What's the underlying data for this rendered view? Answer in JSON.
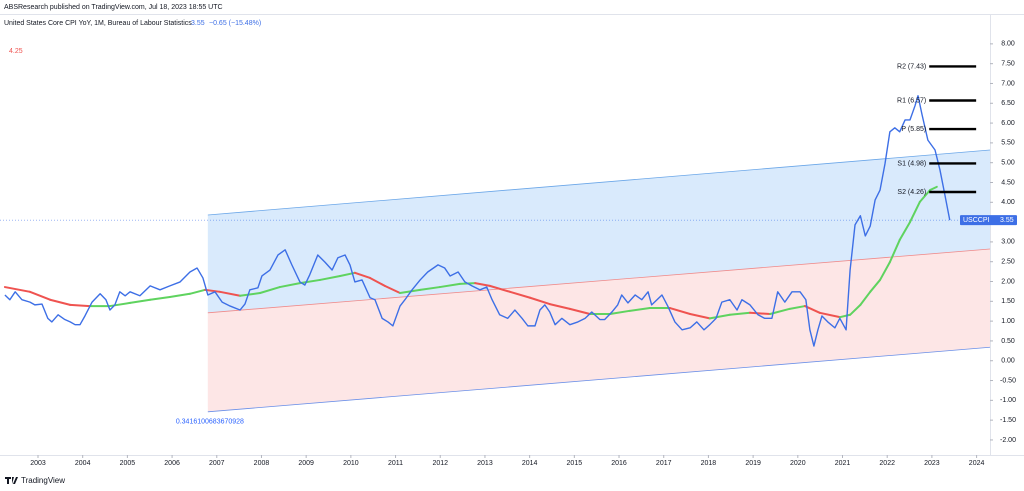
{
  "header": {
    "published": "ABSResearch published on TradingView.com, Jul 18, 2023 18:55 UTC",
    "brand": "TradingView"
  },
  "chart_data": {
    "type": "line",
    "legend": {
      "last": "3.55",
      "change": "−0.65 (−15.48%)"
    },
    "corner_annotation": "4.25",
    "xlim": [
      2002.15,
      2024.3
    ],
    "ylim": [
      -2.38,
      8.35
    ],
    "xticks": [
      2003,
      2004,
      2005,
      2006,
      2007,
      2008,
      2009,
      2010,
      2011,
      2012,
      2013,
      2014,
      2015,
      2016,
      2017,
      2018,
      2019,
      2020,
      2021,
      2022,
      2023,
      2024
    ],
    "yticks": [
      {
        "value": 8,
        "label": "8.00"
      },
      {
        "value": 7.5,
        "label": "7.50"
      },
      {
        "value": 7,
        "label": "7.00"
      },
      {
        "value": 6.5,
        "label": "6.50"
      },
      {
        "value": 6,
        "label": "6.00"
      },
      {
        "value": 5.5,
        "label": "5.50"
      },
      {
        "value": 5,
        "label": "5.00"
      },
      {
        "value": 4.5,
        "label": "4.50"
      },
      {
        "value": 4,
        "label": "4.00"
      },
      {
        "value": 3.5,
        "label": "3.50"
      },
      {
        "value": 3,
        "label": "3.00"
      },
      {
        "value": 2.5,
        "label": "2.50"
      },
      {
        "value": 2,
        "label": "2.00"
      },
      {
        "value": 1.5,
        "label": "1.50"
      },
      {
        "value": 1,
        "label": "1.00"
      },
      {
        "value": 0.5,
        "label": "0.50"
      },
      {
        "value": 0,
        "label": "0.00"
      },
      {
        "value": -0.5,
        "label": "-0.50"
      },
      {
        "value": -1,
        "label": "-1.00"
      },
      {
        "value": -1.5,
        "label": "-1.50"
      },
      {
        "value": -2,
        "label": "-2.00"
      }
    ],
    "grid": false,
    "series": [
      {
        "name": "United States Core CPI YoY, 1M, Bureau of Labour Statistics",
        "color": "#3d6fe6",
        "price_label": "USCCPI",
        "x": [
          2002.26,
          2002.37,
          2002.49,
          2002.64,
          2002.82,
          2002.93,
          2003.09,
          2003.22,
          2003.31,
          2003.45,
          2003.6,
          2003.72,
          2003.83,
          2003.94,
          2004.05,
          2004.21,
          2004.39,
          2004.52,
          2004.61,
          2004.72,
          2004.83,
          2004.95,
          2005.06,
          2005.28,
          2005.51,
          2005.73,
          2005.95,
          2006.18,
          2006.4,
          2006.56,
          2006.69,
          2006.8,
          2006.96,
          2007.12,
          2007.3,
          2007.52,
          2007.63,
          2007.74,
          2007.92,
          2008.01,
          2008.19,
          2008.37,
          2008.53,
          2008.68,
          2008.86,
          2008.97,
          2009.08,
          2009.26,
          2009.42,
          2009.58,
          2009.71,
          2009.87,
          2009.98,
          2010.09,
          2010.25,
          2010.43,
          2010.54,
          2010.7,
          2010.83,
          2010.94,
          2011.1,
          2011.21,
          2011.37,
          2011.55,
          2011.72,
          2011.95,
          2012.1,
          2012.22,
          2012.4,
          2012.55,
          2012.71,
          2012.89,
          2013.04,
          2013.16,
          2013.33,
          2013.51,
          2013.67,
          2013.83,
          2013.96,
          2014.12,
          2014.23,
          2014.34,
          2014.45,
          2014.57,
          2014.72,
          2014.9,
          2015.08,
          2015.24,
          2015.39,
          2015.57,
          2015.68,
          2015.84,
          2015.97,
          2016.06,
          2016.2,
          2016.36,
          2016.51,
          2016.65,
          2016.73,
          2016.85,
          2016.96,
          2017.09,
          2017.25,
          2017.41,
          2017.59,
          2017.74,
          2017.9,
          2018.03,
          2018.17,
          2018.3,
          2018.48,
          2018.64,
          2018.75,
          2018.93,
          2019.11,
          2019.26,
          2019.42,
          2019.55,
          2019.71,
          2019.87,
          2020.05,
          2020.18,
          2020.27,
          2020.36,
          2020.45,
          2020.54,
          2020.67,
          2020.83,
          2020.94,
          2021.08,
          2021.17,
          2021.28,
          2021.4,
          2021.51,
          2021.62,
          2021.73,
          2021.84,
          2021.95,
          2022.06,
          2022.17,
          2022.28,
          2022.4,
          2022.51,
          2022.62,
          2022.69,
          2022.78,
          2022.91,
          2023.07,
          2023.18,
          2023.29,
          2023.4
        ],
        "values": [
          1.66,
          1.54,
          1.74,
          1.54,
          1.48,
          1.41,
          1.43,
          1.07,
          0.98,
          1.16,
          1.04,
          0.98,
          0.91,
          0.91,
          1.13,
          1.48,
          1.69,
          1.54,
          1.28,
          1.41,
          1.74,
          1.64,
          1.74,
          1.64,
          1.89,
          1.79,
          1.89,
          1.99,
          2.24,
          2.34,
          2.09,
          1.66,
          1.74,
          1.48,
          1.38,
          1.28,
          1.43,
          1.79,
          1.84,
          2.14,
          2.29,
          2.67,
          2.8,
          2.42,
          1.99,
          1.91,
          2.17,
          2.67,
          2.49,
          2.29,
          2.6,
          2.67,
          2.42,
          1.99,
          2.04,
          1.59,
          1.54,
          1.07,
          0.98,
          0.88,
          1.38,
          1.54,
          1.79,
          2.04,
          2.24,
          2.42,
          2.34,
          2.14,
          2.24,
          1.99,
          1.89,
          1.79,
          1.86,
          1.54,
          1.16,
          1.07,
          1.28,
          1.07,
          0.88,
          0.88,
          1.28,
          1.41,
          1.23,
          0.91,
          1.07,
          0.91,
          0.98,
          1.07,
          1.23,
          1.04,
          1.04,
          1.23,
          1.41,
          1.66,
          1.46,
          1.66,
          1.54,
          1.74,
          1.41,
          1.54,
          1.66,
          1.38,
          0.98,
          0.78,
          0.83,
          0.98,
          0.78,
          0.91,
          1.07,
          1.48,
          1.54,
          1.28,
          1.54,
          1.41,
          1.16,
          1.07,
          1.07,
          1.74,
          1.48,
          1.74,
          1.74,
          1.54,
          0.78,
          0.37,
          0.78,
          1.13,
          0.98,
          0.83,
          1.07,
          0.78,
          2.29,
          3.43,
          3.66,
          3.15,
          3.4,
          4.06,
          4.31,
          4.97,
          5.78,
          5.88,
          5.78,
          6.08,
          6.08,
          6.43,
          6.69,
          6.21,
          5.57,
          5.32,
          4.82,
          4.19,
          3.55
        ]
      },
      {
        "rising_color": "#5fd35f",
        "falling_color": "#ef5350",
        "x": [
          2002.26,
          2002.82,
          2003.27,
          2003.72,
          2004.16,
          2004.61,
          2005.06,
          2005.51,
          2005.95,
          2006.4,
          2006.74,
          2007.07,
          2007.52,
          2007.97,
          2008.41,
          2008.86,
          2009.31,
          2009.76,
          2010.09,
          2010.43,
          2010.76,
          2011.1,
          2011.55,
          2011.99,
          2012.44,
          2012.78,
          2013.11,
          2013.56,
          2014.01,
          2014.45,
          2014.9,
          2015.35,
          2015.8,
          2016.24,
          2016.69,
          2017.14,
          2017.59,
          2018.03,
          2018.48,
          2018.93,
          2019.38,
          2019.82,
          2020.16,
          2020.49,
          2020.94,
          2021.17,
          2021.4,
          2021.62,
          2021.84,
          2022.06,
          2022.28,
          2022.51,
          2022.73,
          2022.96,
          2023.11
        ],
        "values": [
          1.86,
          1.74,
          1.54,
          1.41,
          1.38,
          1.38,
          1.46,
          1.54,
          1.61,
          1.69,
          1.79,
          1.74,
          1.64,
          1.71,
          1.86,
          1.96,
          2.04,
          2.14,
          2.22,
          2.09,
          1.89,
          1.71,
          1.79,
          1.86,
          1.94,
          1.96,
          1.89,
          1.74,
          1.59,
          1.43,
          1.31,
          1.18,
          1.18,
          1.26,
          1.33,
          1.33,
          1.18,
          1.07,
          1.16,
          1.21,
          1.18,
          1.31,
          1.38,
          1.21,
          1.1,
          1.16,
          1.41,
          1.74,
          2.04,
          2.49,
          3.05,
          3.5,
          4.01,
          4.31,
          4.39
        ]
      }
    ],
    "channel": {
      "x": [
        2006.8,
        2024.3
      ],
      "upper": [
        3.68,
        5.32
      ],
      "middle": [
        1.21,
        2.82
      ],
      "lower": [
        -1.29,
        0.34
      ],
      "upper_color": "#cfe5fb",
      "lower_color": "#fde0e0",
      "label": "0.3416100683670928"
    },
    "pivots": {
      "x": [
        2022.94,
        2023.99
      ],
      "levels": [
        {
          "label": "R2 (7.43)",
          "value": 7.43
        },
        {
          "label": "R1 (6.57)",
          "value": 6.57
        },
        {
          "label": "P (5.85)",
          "value": 5.85
        },
        {
          "label": "S1 (4.98)",
          "value": 4.98
        },
        {
          "label": "S2 (4.26)",
          "value": 4.26
        }
      ]
    }
  }
}
